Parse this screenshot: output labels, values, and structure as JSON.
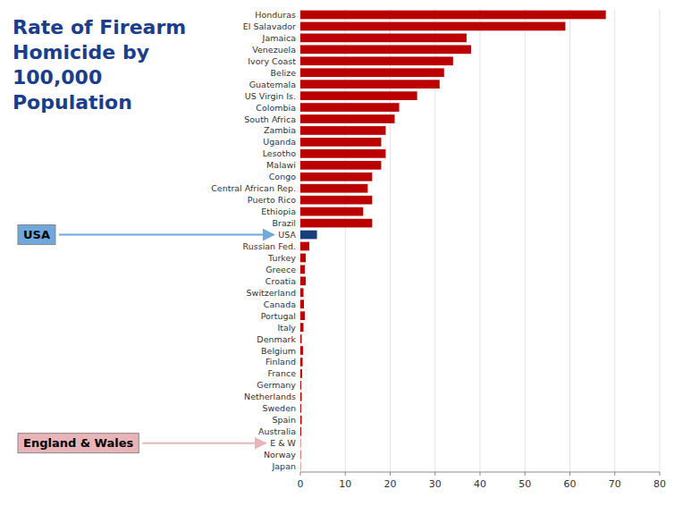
{
  "chart_data": {
    "type": "bar",
    "orientation": "horizontal",
    "title": "Rate of Firearm\nHomicide by\n100,000\nPopulation",
    "categories": [
      "Honduras",
      "El Salavador",
      "Jamaica",
      "Venezuela",
      "Ivory Coast",
      "Belize",
      "Guatemala",
      "US Virgin Is.",
      "Colombia",
      "South Africa",
      "Zambia",
      "Uganda",
      "Lesotho",
      "Malawi",
      "Congo",
      "Central African Rep.",
      "Puerto Rico",
      "Ethiopia",
      "Brazil",
      "USA",
      "Russian Fed.",
      "Turkey",
      "Greece",
      "Croatia",
      "Switzerland",
      "Canada",
      "Portugal",
      "Italy",
      "Denmark",
      "Belgium",
      "Finland",
      "France",
      "Germany",
      "Netherlands",
      "Sweden",
      "Spain",
      "Australia",
      "E & W",
      "Norway",
      "Japan"
    ],
    "values": [
      68,
      59,
      37,
      38,
      34,
      32,
      31,
      26,
      22,
      21,
      19,
      18,
      19,
      18,
      16,
      15,
      16,
      14,
      16,
      3.7,
      2.0,
      1.2,
      1.0,
      1.2,
      0.7,
      0.8,
      1.0,
      0.7,
      0.3,
      0.6,
      0.5,
      0.4,
      0.2,
      0.3,
      0.2,
      0.3,
      0.2,
      0.07,
      0.1,
      0.06
    ],
    "colors": [
      "#bb0000",
      "#bb0000",
      "#bb0000",
      "#bb0000",
      "#bb0000",
      "#bb0000",
      "#bb0000",
      "#bb0000",
      "#bb0000",
      "#bb0000",
      "#bb0000",
      "#bb0000",
      "#bb0000",
      "#bb0000",
      "#bb0000",
      "#bb0000",
      "#bb0000",
      "#bb0000",
      "#bb0000",
      "#1a3e7a",
      "#bb0000",
      "#bb0000",
      "#bb0000",
      "#bb0000",
      "#bb0000",
      "#bb0000",
      "#bb0000",
      "#bb0000",
      "#bb0000",
      "#bb0000",
      "#bb0000",
      "#bb0000",
      "#bb0000",
      "#bb0000",
      "#bb0000",
      "#bb0000",
      "#bb0000",
      "#bb0000",
      "#bb0000",
      "#bb0000"
    ],
    "xlim": [
      0,
      80
    ],
    "xticks": [
      0,
      10,
      20,
      30,
      40,
      50,
      60,
      70,
      80
    ],
    "grid": true,
    "annotations": [
      {
        "text": "USA",
        "category": "USA",
        "color": "#6fa8dc"
      },
      {
        "text": "England & Wales",
        "category": "E & W",
        "color": "#e8b4b8"
      }
    ]
  }
}
